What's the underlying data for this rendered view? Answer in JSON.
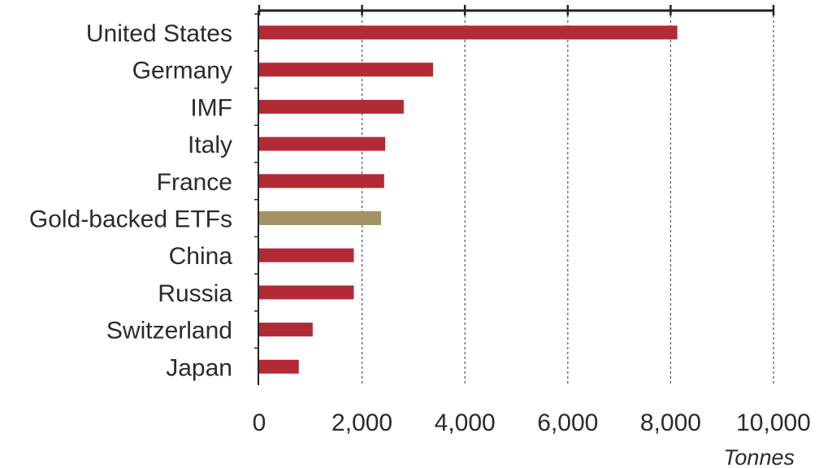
{
  "chart_data": {
    "type": "bar",
    "orientation": "horizontal",
    "categories": [
      "United States",
      "Germany",
      "IMF",
      "Italy",
      "France",
      "Gold-backed ETFs",
      "China",
      "Russia",
      "Switzerland",
      "Japan"
    ],
    "values": [
      8130,
      3380,
      2810,
      2450,
      2430,
      2370,
      1840,
      1840,
      1040,
      770
    ],
    "highlight_category": "Gold-backed ETFs",
    "xlim": [
      0,
      10000
    ],
    "xticks": [
      0,
      2000,
      4000,
      6000,
      8000,
      10000
    ],
    "xtick_labels": [
      "0",
      "2,000",
      "4,000",
      "6,000",
      "8,000",
      "10,000"
    ],
    "unit_label": "Tonnes",
    "grid": "vertical dashed",
    "colors": {
      "bar": "#b22a36",
      "highlight": "#a39263",
      "axis": "#222222",
      "grid": "#555555"
    }
  }
}
